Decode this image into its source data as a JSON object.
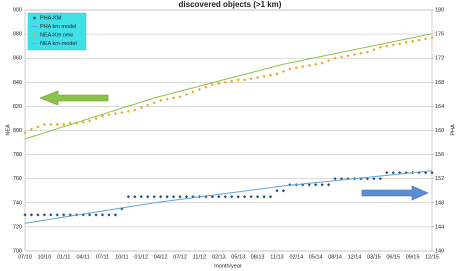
{
  "chart_data": {
    "type": "line",
    "title": "discovered objects (>1 km)",
    "x_label": "month/year",
    "y_label": "NEA",
    "y2_label": "PHA",
    "categories": [
      "07/10",
      null,
      null,
      "10/10",
      null,
      null,
      "01/11",
      null,
      null,
      "04/11",
      null,
      null,
      "07/11",
      null,
      null,
      "10/11",
      null,
      null,
      "01/12",
      null,
      null,
      "04/12",
      null,
      null,
      "07/12",
      null,
      null,
      "11/12",
      null,
      null,
      "02/13",
      null,
      null,
      "05/13",
      null,
      null,
      "08/13",
      null,
      null,
      "11/13",
      null,
      null,
      "02/14",
      null,
      null,
      "05/14",
      null,
      null,
      "08/14",
      null,
      null,
      "12/14",
      null,
      null,
      "03/15",
      null,
      null,
      "06/15",
      null,
      null,
      "09/15",
      null,
      null,
      "12/15"
    ],
    "ylim": [
      700,
      900
    ],
    "yticks": [
      700,
      720,
      740,
      760,
      780,
      800,
      820,
      840,
      860,
      880,
      900
    ],
    "y2lim": [
      140,
      180
    ],
    "y2ticks": [
      140,
      144,
      148,
      152,
      156,
      160,
      164,
      168,
      172,
      176,
      180
    ],
    "grid": true,
    "legend": "top-left",
    "series": [
      {
        "name": "PHA-KM",
        "color": "#1f4e79",
        "mode": "markers",
        "axis": "y2",
        "values": [
          146,
          146,
          146,
          146,
          146,
          146,
          146,
          146,
          146,
          146,
          146,
          146,
          146,
          146,
          146,
          147,
          149,
          149,
          149,
          149,
          149,
          149,
          149,
          149,
          149,
          149,
          149,
          149,
          149,
          149,
          149,
          149,
          149,
          149,
          149,
          149,
          149,
          149,
          149,
          150,
          150,
          151,
          151,
          151,
          151,
          151,
          151,
          151,
          152,
          152,
          152,
          152,
          152,
          152,
          152,
          152,
          153,
          153,
          153,
          153,
          153,
          153,
          153,
          153
        ]
      },
      {
        "name": "PHA km model",
        "color": "#5ea5d8",
        "mode": "line",
        "axis": "y2",
        "values": [
          144.6,
          144.77,
          144.94,
          145.11,
          145.28,
          145.45,
          145.62,
          145.79,
          145.96,
          146.13,
          146.3,
          146.47,
          146.64,
          146.81,
          146.98,
          147.15,
          147.32,
          147.49,
          147.66,
          147.83,
          148,
          148.14,
          148.28,
          148.42,
          148.56,
          148.7,
          148.84,
          148.98,
          149.12,
          149.26,
          149.4,
          149.54,
          149.68,
          149.82,
          149.96,
          150.1,
          150.24,
          150.38,
          150.52,
          150.66,
          150.8,
          150.91,
          151.02,
          151.13,
          151.24,
          151.35,
          151.46,
          151.57,
          151.68,
          151.79,
          151.9,
          152.01,
          152.12,
          152.23,
          152.34,
          152.45,
          152.56,
          152.67,
          152.78,
          152.89,
          153,
          153.11,
          153.22,
          153.33
        ]
      },
      {
        "name": "NEA-Km new",
        "color": "#f5a623",
        "mode": "markers",
        "values": [
          798,
          801,
          803,
          805,
          805,
          805,
          805,
          806,
          806,
          807,
          808,
          810,
          812,
          813,
          814,
          815,
          816,
          817,
          819,
          821,
          823,
          825,
          826,
          827,
          828,
          830,
          832,
          834,
          836,
          838,
          839,
          840,
          841,
          842,
          842,
          843,
          844,
          845,
          846,
          847,
          849,
          851,
          852,
          853,
          854,
          855,
          856,
          858,
          860,
          861,
          862,
          863,
          864,
          865,
          867,
          869,
          870,
          871,
          872,
          873,
          874,
          875,
          876,
          877
        ]
      },
      {
        "name": "NEA km-model",
        "color": "#8bc34a",
        "mode": "line",
        "values": [
          793,
          794.7,
          796.4,
          798.1,
          799.8,
          801.5,
          803.2,
          804.9,
          806.6,
          808.3,
          810,
          811.7,
          813.4,
          815.1,
          816.8,
          818.5,
          820.2,
          821.9,
          823.6,
          825.3,
          827,
          828.4,
          829.8,
          831.2,
          832.6,
          834,
          835.4,
          836.8,
          838.2,
          839.6,
          841,
          842.4,
          843.8,
          845.2,
          846.6,
          848,
          849.4,
          850.8,
          852.2,
          853.6,
          855,
          856.1,
          857.2,
          858.3,
          859.4,
          860.5,
          861.6,
          862.7,
          863.8,
          864.9,
          866,
          867.1,
          868.2,
          869.3,
          870.4,
          871.5,
          872.6,
          873.7,
          874.8,
          875.9,
          877,
          878.1,
          879.2,
          880.3
        ]
      }
    ]
  }
}
